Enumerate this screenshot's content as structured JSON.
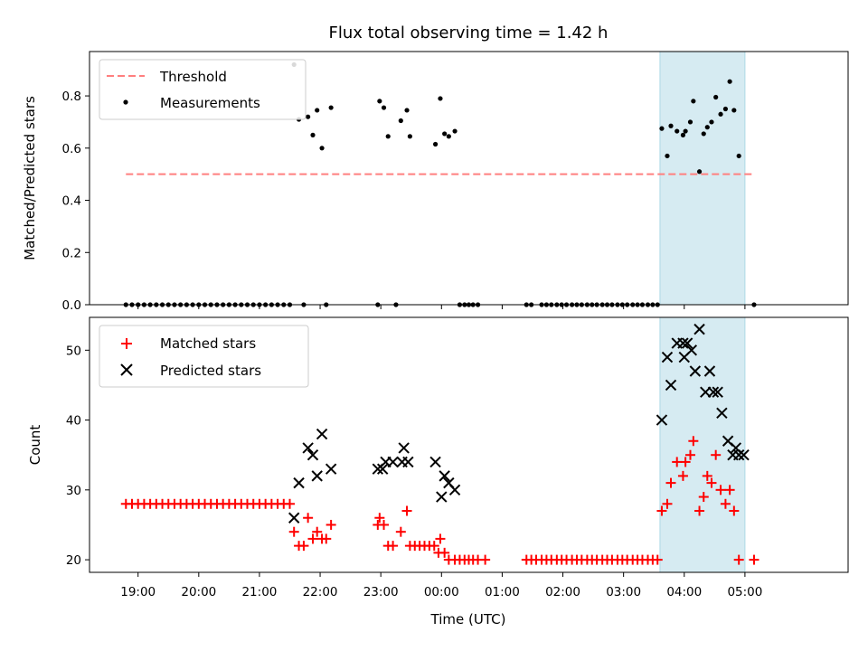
{
  "chart_data": {
    "title": "Flux total observing time = 1.42 h",
    "xlabel": "Time (UTC)",
    "x_unit": "hours relative to 00:00 UTC (negative = previous evening)",
    "xlim": [
      -5.8,
      6.7
    ],
    "x_ticks": [
      {
        "x": -5,
        "label": "19:00"
      },
      {
        "x": -4,
        "label": "20:00"
      },
      {
        "x": -3,
        "label": "21:00"
      },
      {
        "x": -2,
        "label": "22:00"
      },
      {
        "x": -1,
        "label": "23:00"
      },
      {
        "x": 0,
        "label": "00:00"
      },
      {
        "x": 1,
        "label": "01:00"
      },
      {
        "x": 2,
        "label": "02:00"
      },
      {
        "x": 3,
        "label": "03:00"
      },
      {
        "x": 4,
        "label": "04:00"
      },
      {
        "x": 5,
        "label": "05:00"
      }
    ],
    "highlight_span": {
      "x0": 3.6,
      "x1": 5.0,
      "color": "#add8e6"
    },
    "colors": {
      "threshold": "#ff7f7f",
      "measurements": "#000000",
      "matched": "#ff0000",
      "predicted": "#000000",
      "span": "#add8e6"
    },
    "top": {
      "type": "scatter",
      "ylabel": "Matched/Predicted stars",
      "ylim": [
        0,
        0.97
      ],
      "y_ticks": [
        {
          "y": 0,
          "label": "0.0"
        },
        {
          "y": 0.2,
          "label": "0.2"
        },
        {
          "y": 0.4,
          "label": "0.4"
        },
        {
          "y": 0.6,
          "label": "0.6"
        },
        {
          "y": 0.8,
          "label": "0.8"
        }
      ],
      "legend": {
        "position": "upper-left",
        "entries": [
          "Threshold",
          "Measurements"
        ]
      },
      "threshold": {
        "name": "Threshold",
        "value": 0.5,
        "x_range": [
          -5.2,
          5.15
        ]
      },
      "measurements": {
        "name": "Measurements",
        "points": [
          [
            -5.2,
            0
          ],
          [
            -5.1,
            0
          ],
          [
            -5.0,
            0
          ],
          [
            -4.9,
            0
          ],
          [
            -4.8,
            0
          ],
          [
            -4.7,
            0
          ],
          [
            -4.6,
            0
          ],
          [
            -4.5,
            0
          ],
          [
            -4.4,
            0
          ],
          [
            -4.3,
            0
          ],
          [
            -4.2,
            0
          ],
          [
            -4.1,
            0
          ],
          [
            -4.0,
            0
          ],
          [
            -3.9,
            0
          ],
          [
            -3.8,
            0
          ],
          [
            -3.7,
            0
          ],
          [
            -3.6,
            0
          ],
          [
            -3.5,
            0
          ],
          [
            -3.4,
            0
          ],
          [
            -3.3,
            0
          ],
          [
            -3.2,
            0
          ],
          [
            -3.1,
            0
          ],
          [
            -3.0,
            0
          ],
          [
            -2.9,
            0
          ],
          [
            -2.8,
            0
          ],
          [
            -2.7,
            0
          ],
          [
            -2.6,
            0
          ],
          [
            -2.5,
            0
          ],
          [
            -2.43,
            0.92
          ],
          [
            -2.35,
            0.71
          ],
          [
            -2.27,
            0
          ],
          [
            -2.2,
            0.72
          ],
          [
            -2.12,
            0.65
          ],
          [
            -2.05,
            0.745
          ],
          [
            -1.97,
            0.6
          ],
          [
            -1.9,
            0
          ],
          [
            -1.82,
            0.755
          ],
          [
            -1.05,
            0
          ],
          [
            -1.02,
            0.78
          ],
          [
            -0.95,
            0.755
          ],
          [
            -0.88,
            0.645
          ],
          [
            -0.75,
            0
          ],
          [
            -0.67,
            0.705
          ],
          [
            -0.57,
            0.745
          ],
          [
            -0.52,
            0.645
          ],
          [
            -0.1,
            0.615
          ],
          [
            -0.02,
            0.79
          ],
          [
            0.05,
            0.655
          ],
          [
            0.12,
            0.645
          ],
          [
            0.22,
            0.665
          ],
          [
            0.3,
            0
          ],
          [
            0.38,
            0
          ],
          [
            0.45,
            0
          ],
          [
            0.52,
            0
          ],
          [
            0.6,
            0
          ],
          [
            1.4,
            0
          ],
          [
            1.48,
            0
          ],
          [
            1.65,
            0
          ],
          [
            1.73,
            0
          ],
          [
            1.81,
            0
          ],
          [
            1.9,
            0
          ],
          [
            1.98,
            0
          ],
          [
            2.06,
            0
          ],
          [
            2.15,
            0
          ],
          [
            2.23,
            0
          ],
          [
            2.31,
            0
          ],
          [
            2.4,
            0
          ],
          [
            2.48,
            0
          ],
          [
            2.56,
            0
          ],
          [
            2.65,
            0
          ],
          [
            2.73,
            0
          ],
          [
            2.81,
            0
          ],
          [
            2.9,
            0
          ],
          [
            2.98,
            0
          ],
          [
            3.06,
            0
          ],
          [
            3.15,
            0
          ],
          [
            3.23,
            0
          ],
          [
            3.31,
            0
          ],
          [
            3.4,
            0
          ],
          [
            3.48,
            0
          ],
          [
            3.56,
            0
          ],
          [
            3.63,
            0.675
          ],
          [
            3.72,
            0.57
          ],
          [
            3.78,
            0.685
          ],
          [
            3.88,
            0.665
          ],
          [
            3.98,
            0.65
          ],
          [
            4.02,
            0.665
          ],
          [
            4.1,
            0.7
          ],
          [
            4.15,
            0.78
          ],
          [
            4.25,
            0.51
          ],
          [
            4.32,
            0.655
          ],
          [
            4.38,
            0.68
          ],
          [
            4.45,
            0.7
          ],
          [
            4.52,
            0.795
          ],
          [
            4.6,
            0.73
          ],
          [
            4.68,
            0.75
          ],
          [
            4.75,
            0.855
          ],
          [
            4.82,
            0.745
          ],
          [
            4.9,
            0.57
          ],
          [
            5.15,
            0
          ]
        ]
      }
    },
    "bottom": {
      "type": "scatter",
      "ylabel": "Count",
      "ylim": [
        18.2,
        54.7
      ],
      "y_ticks": [
        {
          "y": 20,
          "label": "20"
        },
        {
          "y": 30,
          "label": "30"
        },
        {
          "y": 40,
          "label": "40"
        },
        {
          "y": 50,
          "label": "50"
        }
      ],
      "legend": {
        "position": "upper-left",
        "entries": [
          "Matched stars",
          "Predicted stars"
        ]
      },
      "matched": {
        "name": "Matched stars",
        "marker": "plus",
        "points": [
          [
            -5.2,
            28
          ],
          [
            -5.1,
            28
          ],
          [
            -5.0,
            28
          ],
          [
            -4.9,
            28
          ],
          [
            -4.8,
            28
          ],
          [
            -4.7,
            28
          ],
          [
            -4.6,
            28
          ],
          [
            -4.5,
            28
          ],
          [
            -4.4,
            28
          ],
          [
            -4.3,
            28
          ],
          [
            -4.2,
            28
          ],
          [
            -4.1,
            28
          ],
          [
            -4.0,
            28
          ],
          [
            -3.9,
            28
          ],
          [
            -3.8,
            28
          ],
          [
            -3.7,
            28
          ],
          [
            -3.6,
            28
          ],
          [
            -3.5,
            28
          ],
          [
            -3.4,
            28
          ],
          [
            -3.3,
            28
          ],
          [
            -3.2,
            28
          ],
          [
            -3.1,
            28
          ],
          [
            -3.0,
            28
          ],
          [
            -2.9,
            28
          ],
          [
            -2.8,
            28
          ],
          [
            -2.7,
            28
          ],
          [
            -2.6,
            28
          ],
          [
            -2.5,
            28
          ],
          [
            -2.43,
            24
          ],
          [
            -2.35,
            22
          ],
          [
            -2.27,
            22
          ],
          [
            -2.2,
            26
          ],
          [
            -2.12,
            23
          ],
          [
            -2.05,
            24
          ],
          [
            -1.97,
            23
          ],
          [
            -1.9,
            23
          ],
          [
            -1.82,
            25
          ],
          [
            -1.05,
            25
          ],
          [
            -1.02,
            26
          ],
          [
            -0.95,
            25
          ],
          [
            -0.88,
            22
          ],
          [
            -0.8,
            22
          ],
          [
            -0.67,
            24
          ],
          [
            -0.57,
            27
          ],
          [
            -0.52,
            22
          ],
          [
            -0.44,
            22
          ],
          [
            -0.36,
            22
          ],
          [
            -0.28,
            22
          ],
          [
            -0.2,
            22
          ],
          [
            -0.12,
            22
          ],
          [
            -0.05,
            21
          ],
          [
            -0.02,
            23
          ],
          [
            0.05,
            21
          ],
          [
            0.12,
            20
          ],
          [
            0.22,
            20
          ],
          [
            0.3,
            20
          ],
          [
            0.38,
            20
          ],
          [
            0.45,
            20
          ],
          [
            0.52,
            20
          ],
          [
            0.6,
            20
          ],
          [
            0.72,
            20
          ],
          [
            1.4,
            20
          ],
          [
            1.48,
            20
          ],
          [
            1.56,
            20
          ],
          [
            1.65,
            20
          ],
          [
            1.73,
            20
          ],
          [
            1.81,
            20
          ],
          [
            1.9,
            20
          ],
          [
            1.98,
            20
          ],
          [
            2.06,
            20
          ],
          [
            2.15,
            20
          ],
          [
            2.23,
            20
          ],
          [
            2.31,
            20
          ],
          [
            2.4,
            20
          ],
          [
            2.48,
            20
          ],
          [
            2.56,
            20
          ],
          [
            2.65,
            20
          ],
          [
            2.73,
            20
          ],
          [
            2.81,
            20
          ],
          [
            2.9,
            20
          ],
          [
            2.98,
            20
          ],
          [
            3.06,
            20
          ],
          [
            3.15,
            20
          ],
          [
            3.23,
            20
          ],
          [
            3.31,
            20
          ],
          [
            3.4,
            20
          ],
          [
            3.48,
            20
          ],
          [
            3.56,
            20
          ],
          [
            3.63,
            27
          ],
          [
            3.72,
            28
          ],
          [
            3.78,
            31
          ],
          [
            3.88,
            34
          ],
          [
            3.98,
            32
          ],
          [
            4.02,
            34
          ],
          [
            4.1,
            35
          ],
          [
            4.15,
            37
          ],
          [
            4.25,
            27
          ],
          [
            4.32,
            29
          ],
          [
            4.38,
            32
          ],
          [
            4.45,
            31
          ],
          [
            4.52,
            35
          ],
          [
            4.6,
            30
          ],
          [
            4.68,
            28
          ],
          [
            4.75,
            30
          ],
          [
            4.82,
            27
          ],
          [
            4.9,
            20
          ],
          [
            5.15,
            20
          ]
        ]
      },
      "predicted": {
        "name": "Predicted stars",
        "marker": "x",
        "points": [
          [
            -2.43,
            26
          ],
          [
            -2.35,
            31
          ],
          [
            -2.2,
            36
          ],
          [
            -2.12,
            35
          ],
          [
            -2.05,
            32
          ],
          [
            -1.97,
            38
          ],
          [
            -1.82,
            33
          ],
          [
            -1.05,
            33
          ],
          [
            -0.97,
            33
          ],
          [
            -0.92,
            34
          ],
          [
            -0.8,
            34
          ],
          [
            -0.65,
            34
          ],
          [
            -0.62,
            36
          ],
          [
            -0.55,
            34
          ],
          [
            -0.1,
            34
          ],
          [
            0.0,
            29
          ],
          [
            0.05,
            32
          ],
          [
            0.12,
            31
          ],
          [
            0.22,
            30
          ],
          [
            3.63,
            40
          ],
          [
            3.72,
            49
          ],
          [
            3.78,
            45
          ],
          [
            3.88,
            51
          ],
          [
            3.98,
            51
          ],
          [
            4.0,
            49
          ],
          [
            4.05,
            51
          ],
          [
            4.12,
            50
          ],
          [
            4.18,
            47
          ],
          [
            4.25,
            53
          ],
          [
            4.35,
            44
          ],
          [
            4.42,
            47
          ],
          [
            4.48,
            44
          ],
          [
            4.55,
            44
          ],
          [
            4.62,
            41
          ],
          [
            4.72,
            37
          ],
          [
            4.8,
            35
          ],
          [
            4.85,
            36
          ],
          [
            4.9,
            35
          ],
          [
            4.98,
            35
          ]
        ]
      }
    }
  }
}
